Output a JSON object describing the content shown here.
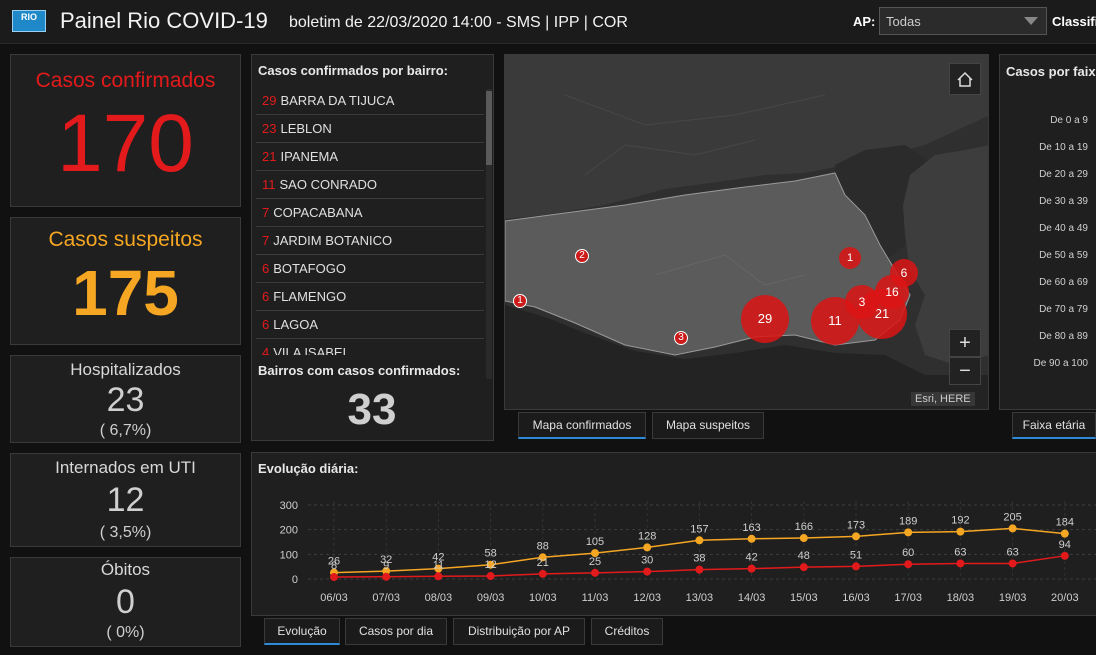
{
  "header": {
    "logo_text": "RIO",
    "title": "Painel Rio COVID-19",
    "subtitle": "boletim de 22/03/2020 14:00 - SMS | IPP | COR",
    "ap_label": "AP:",
    "ap_value": "Todas",
    "classif_label": "Classifi"
  },
  "stats": {
    "confirmados": {
      "label": "Casos confirmados",
      "value": "170",
      "color": "#e31a1c"
    },
    "suspeitos": {
      "label": "Casos suspeitos",
      "value": "175",
      "color": "#f5a623"
    },
    "hospitalizados": {
      "label": "Hospitalizados",
      "value": "23",
      "pct": "( 6,7%)"
    },
    "uti": {
      "label": "Internados em UTI",
      "value": "12",
      "pct": "( 3,5%)"
    },
    "obitos": {
      "label": "Óbitos",
      "value": "0",
      "pct": "( 0%)"
    }
  },
  "bairros": {
    "title": "Casos confirmados por bairro:",
    "items": [
      {
        "count": "29",
        "name": "BARRA DA TIJUCA"
      },
      {
        "count": "23",
        "name": "LEBLON"
      },
      {
        "count": "21",
        "name": "IPANEMA"
      },
      {
        "count": "11",
        "name": "SAO CONRADO"
      },
      {
        "count": "7",
        "name": "COPACABANA"
      },
      {
        "count": "7",
        "name": "JARDIM BOTANICO"
      },
      {
        "count": "6",
        "name": "BOTAFOGO"
      },
      {
        "count": "6",
        "name": "FLAMENGO"
      },
      {
        "count": "6",
        "name": "LAGOA"
      },
      {
        "count": "4",
        "name": "VILA ISABEL"
      }
    ],
    "total_label": "Bairros com casos confirmados:",
    "total_value": "33"
  },
  "map": {
    "attribution": "Esri, HERE",
    "zoom_in": "+",
    "zoom_out": "−",
    "markers": [
      {
        "label": "29",
        "size": "large"
      },
      {
        "label": "11",
        "size": "large"
      },
      {
        "label": "21",
        "size": "large"
      },
      {
        "label": "3",
        "size": "medium"
      },
      {
        "label": "16",
        "size": "medium"
      },
      {
        "label": "6",
        "size": "medium"
      },
      {
        "label": "1",
        "size": "medium"
      },
      {
        "label": "2",
        "size": "small"
      },
      {
        "label": "3",
        "size": "small"
      },
      {
        "label": "1",
        "size": "small"
      }
    ],
    "tabs": [
      "Mapa confirmados",
      "Mapa suspeitos"
    ]
  },
  "faixa": {
    "title": "Casos por faixa",
    "labels": [
      "De 0 a 9",
      "De 10 a 19",
      "De 20 a 29",
      "De 30 a 39",
      "De 40 a 49",
      "De 50 a 59",
      "De 60 a 69",
      "De 70 a 79",
      "De 80 a 89",
      "De 90 a 100"
    ],
    "tab": "Faixa etária"
  },
  "evolucao": {
    "title": "Evolução diária:",
    "tabs": [
      "Evolução",
      "Casos por dia",
      "Distribuição por AP",
      "Créditos"
    ]
  },
  "chart_data": {
    "type": "line",
    "title": "Evolução diária:",
    "x": [
      "06/03",
      "07/03",
      "08/03",
      "09/03",
      "10/03",
      "11/03",
      "12/03",
      "13/03",
      "14/03",
      "15/03",
      "16/03",
      "17/03",
      "18/03",
      "19/03",
      "20/03"
    ],
    "ylim": [
      0,
      300
    ],
    "yticks": [
      0,
      100,
      200,
      300
    ],
    "grid": true,
    "series": [
      {
        "name": "",
        "color": "#f5a623",
        "values": [
          26,
          32,
          42,
          58,
          88,
          105,
          128,
          157,
          163,
          166,
          173,
          189,
          192,
          205,
          184
        ]
      },
      {
        "name": "",
        "color": "#e31a1c",
        "values": [
          8,
          9,
          11,
          12,
          21,
          25,
          30,
          38,
          42,
          48,
          51,
          60,
          63,
          63,
          94
        ]
      }
    ]
  }
}
